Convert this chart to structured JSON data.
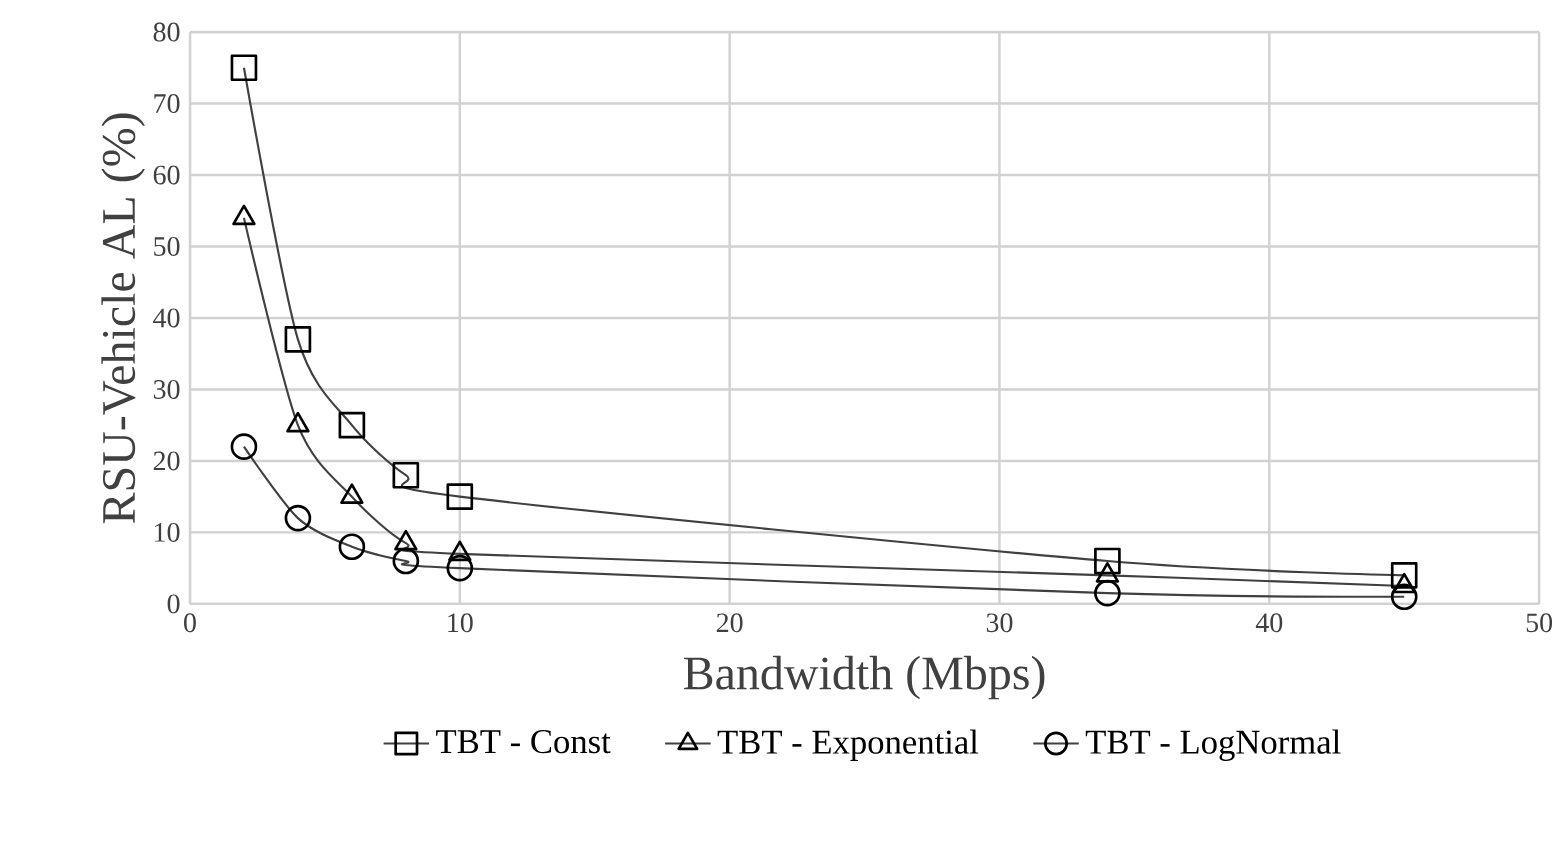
{
  "chart_data": {
    "type": "line",
    "xlabel": "Bandwidth (Mbps)",
    "ylabel": "RSU-Vehicle AL (%)",
    "x": [
      2,
      4,
      6,
      8,
      10,
      34,
      45
    ],
    "series": [
      {
        "name": "TBT - Const",
        "color": "#404040",
        "marker": "square",
        "values": [
          75,
          37,
          25,
          18,
          15,
          6,
          4
        ]
      },
      {
        "name": "TBT - Exponential",
        "color": "#404040",
        "marker": "triangle",
        "values": [
          54,
          25,
          15,
          8.5,
          7,
          4,
          2.5
        ]
      },
      {
        "name": "TBT - LogNormal",
        "color": "#404040",
        "marker": "circle",
        "values": [
          22,
          12,
          8,
          6,
          5,
          1.5,
          1
        ]
      }
    ],
    "xlim": [
      0,
      50
    ],
    "xticks": [
      0,
      10,
      20,
      30,
      40,
      50
    ],
    "ylim": [
      0,
      80
    ],
    "yticks": [
      0,
      10,
      20,
      30,
      40,
      50,
      60,
      70,
      80
    ],
    "grid": true,
    "legend": "bottom",
    "line_style": "solid"
  }
}
